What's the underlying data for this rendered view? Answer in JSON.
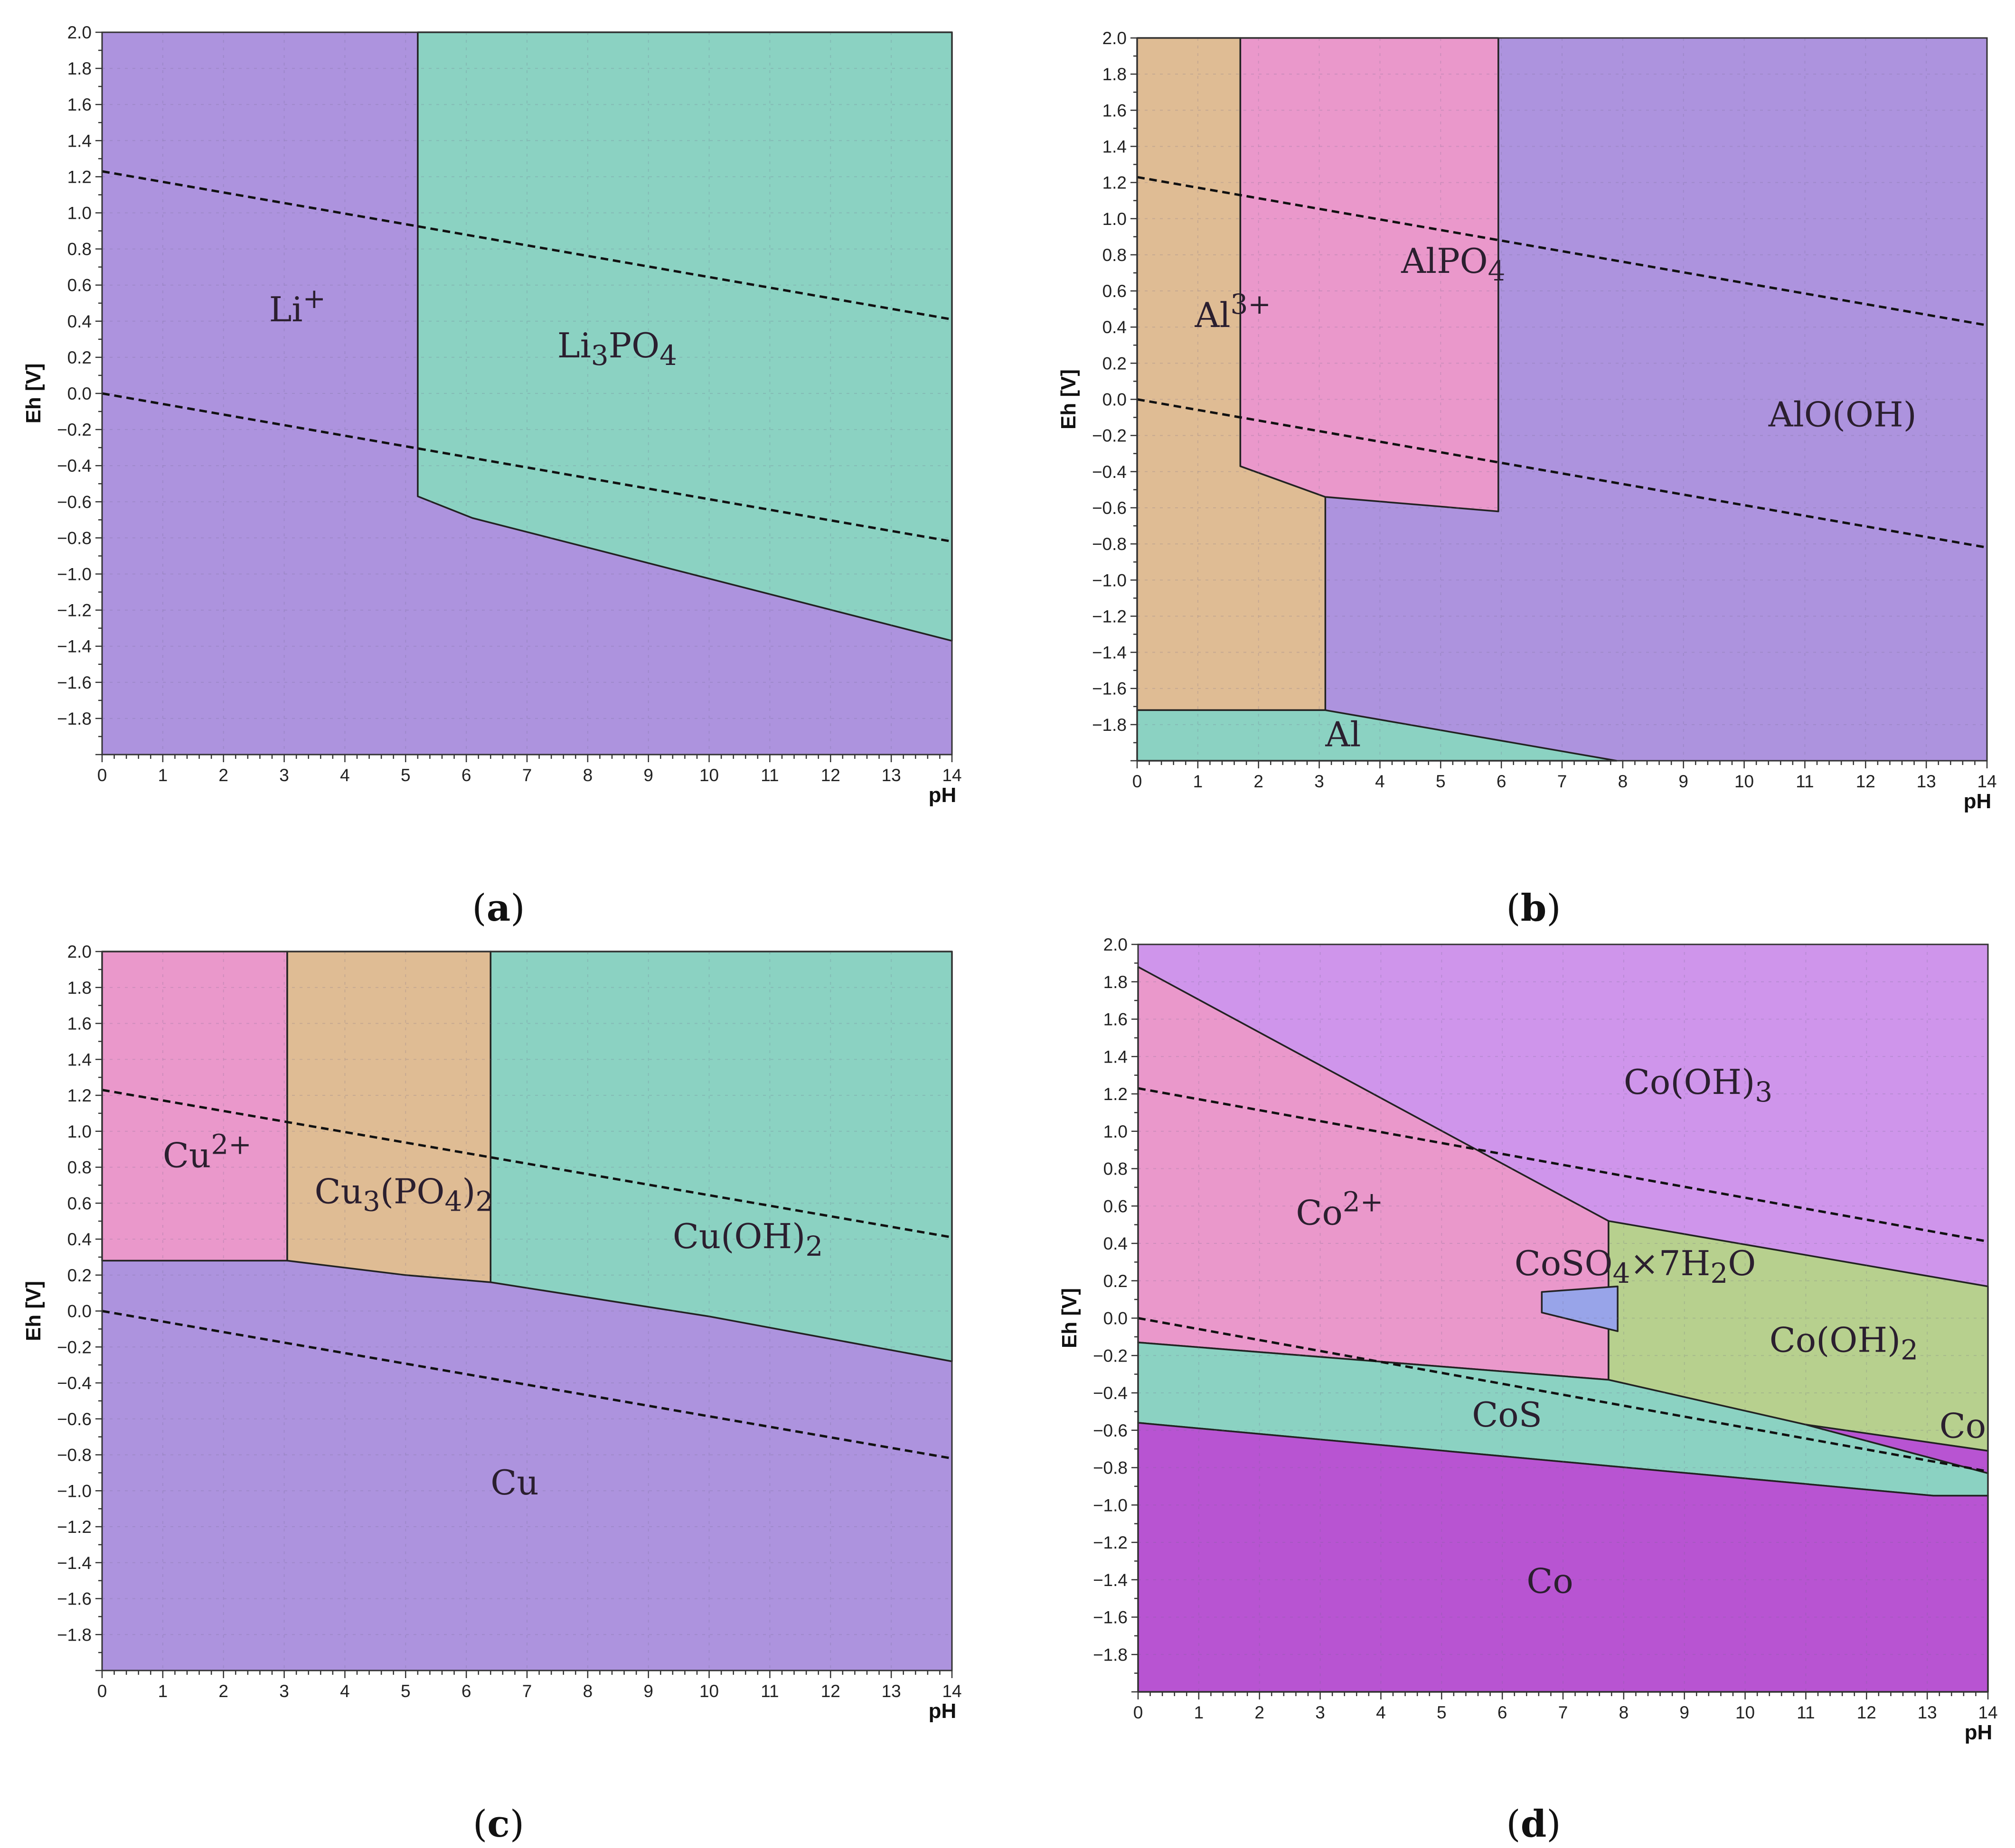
{
  "colors": {
    "purple": "#ad93de",
    "teal": "#8bd2c2",
    "pink": "#ea98cb",
    "tan": "#dfbc94",
    "lavender": "#cf95eb",
    "magenta": "#b854d2",
    "olive": "#b7d08e",
    "blue": "#98a4e9"
  },
  "chart_data": [
    {
      "id": "a",
      "type": "area",
      "caption": "(a)",
      "caption_letter": "a",
      "title": "",
      "xlabel": "pH",
      "ylabel": "Eh [V]",
      "xlim": [
        0,
        14
      ],
      "ylim": [
        -2.0,
        2.0
      ],
      "x_ticks": [
        "0",
        "1",
        "2",
        "3",
        "4",
        "5",
        "6",
        "7",
        "8",
        "9",
        "10",
        "11",
        "12",
        "13",
        "14"
      ],
      "y_ticks": [
        "2.0",
        "1.8",
        "1.6",
        "1.4",
        "1.2",
        "1.0",
        "0.8",
        "0.6",
        "0.4",
        "0.2",
        "0.0",
        "−0.2",
        "−0.4",
        "−0.6",
        "−0.8",
        "−1.0",
        "−1.2",
        "−1.4",
        "−1.6",
        "−1.8"
      ],
      "regions": [
        {
          "name": "Li+",
          "color": "purple",
          "points": [
            [
              0,
              2
            ],
            [
              14,
              2
            ],
            [
              14,
              -2
            ],
            [
              0,
              -2
            ]
          ]
        },
        {
          "name": "Li3PO4",
          "color": "teal",
          "points": [
            [
              5.2,
              2
            ],
            [
              14,
              2
            ],
            [
              14,
              -1.37
            ],
            [
              6.1,
              -0.69
            ],
            [
              5.2,
              -0.57
            ]
          ]
        }
      ],
      "water_lines": [
        [
          [
            0,
            1.23
          ],
          [
            14,
            0.41
          ]
        ],
        [
          [
            0,
            0.0
          ],
          [
            14,
            -0.82
          ]
        ]
      ],
      "labels": [
        {
          "text": "Li",
          "sup": "+",
          "x": 2.75,
          "y": 0.4
        },
        {
          "text": "Li",
          "sub": "3",
          "text2": "PO",
          "sub2": "4",
          "x": 7.5,
          "y": 0.2
        }
      ]
    },
    {
      "id": "b",
      "type": "area",
      "caption": "(b)",
      "caption_letter": "b",
      "title": "",
      "xlabel": "pH",
      "ylabel": "Eh [V]",
      "xlim": [
        0,
        14
      ],
      "ylim": [
        -2.0,
        2.0
      ],
      "x_ticks": [
        "0",
        "1",
        "2",
        "3",
        "4",
        "5",
        "6",
        "7",
        "8",
        "9",
        "10",
        "11",
        "12",
        "13",
        "14"
      ],
      "y_ticks": [
        "2.0",
        "1.8",
        "1.6",
        "1.4",
        "1.2",
        "1.0",
        "0.8",
        "0.6",
        "0.4",
        "0.2",
        "0.0",
        "−0.2",
        "−0.4",
        "−0.6",
        "−0.8",
        "−1.0",
        "−1.2",
        "−1.4",
        "−1.6",
        "−1.8"
      ],
      "regions": [
        {
          "name": "AlO(OH)",
          "color": "purple",
          "points": [
            [
              0,
              2
            ],
            [
              14,
              2
            ],
            [
              14,
              -2
            ],
            [
              0,
              -2
            ]
          ]
        },
        {
          "name": "Al3+",
          "color": "tan",
          "points": [
            [
              0,
              2
            ],
            [
              1.7,
              2
            ],
            [
              1.7,
              -0.37
            ],
            [
              3.1,
              -0.54
            ],
            [
              3.1,
              -1.72
            ],
            [
              0,
              -1.72
            ]
          ]
        },
        {
          "name": "AlPO4",
          "color": "pink",
          "points": [
            [
              1.7,
              2
            ],
            [
              5.95,
              2
            ],
            [
              5.95,
              -0.62
            ],
            [
              3.1,
              -0.54
            ],
            [
              1.7,
              -0.37
            ]
          ]
        },
        {
          "name": "Al",
          "color": "teal",
          "points": [
            [
              0,
              -1.72
            ],
            [
              3.1,
              -1.72
            ],
            [
              7.9,
              -2.0
            ],
            [
              0,
              -2.0
            ]
          ]
        }
      ],
      "water_lines": [
        [
          [
            0,
            1.23
          ],
          [
            14,
            0.41
          ]
        ],
        [
          [
            0,
            0.0
          ],
          [
            14,
            -0.82
          ]
        ]
      ],
      "labels": [
        {
          "text": "AlPO",
          "sub": "4",
          "x": 4.35,
          "y": 0.7
        },
        {
          "text": "Al",
          "sup": "3+",
          "x": 0.95,
          "y": 0.4
        },
        {
          "text": "AlO(OH)",
          "x": 10.4,
          "y": -0.15
        },
        {
          "text": "Al",
          "x": 3.1,
          "y": -1.92
        }
      ]
    },
    {
      "id": "c",
      "type": "area",
      "caption": "(c)",
      "caption_letter": "c",
      "title": "",
      "xlabel": "pH",
      "ylabel": "Eh [V]",
      "xlim": [
        0,
        14
      ],
      "ylim": [
        -2.0,
        2.0
      ],
      "x_ticks": [
        "0",
        "1",
        "2",
        "3",
        "4",
        "5",
        "6",
        "7",
        "8",
        "9",
        "10",
        "11",
        "12",
        "13",
        "14"
      ],
      "y_ticks": [
        "2.0",
        "1.8",
        "1.6",
        "1.4",
        "1.2",
        "1.0",
        "0.8",
        "0.6",
        "0.4",
        "0.2",
        "0.0",
        "−0.2",
        "−0.4",
        "−0.6",
        "−0.8",
        "−1.0",
        "−1.2",
        "−1.4",
        "−1.6",
        "−1.8"
      ],
      "regions": [
        {
          "name": "Cu",
          "color": "purple",
          "points": [
            [
              0,
              2
            ],
            [
              14,
              2
            ],
            [
              14,
              -2
            ],
            [
              0,
              -2
            ]
          ]
        },
        {
          "name": "Cu2+",
          "color": "pink",
          "points": [
            [
              0,
              2
            ],
            [
              3.05,
              2
            ],
            [
              3.05,
              0.28
            ],
            [
              0,
              0.28
            ]
          ]
        },
        {
          "name": "Cu3(PO4)2",
          "color": "tan",
          "points": [
            [
              3.05,
              2
            ],
            [
              6.4,
              2
            ],
            [
              6.4,
              0.16
            ],
            [
              5.0,
              0.2
            ],
            [
              3.05,
              0.28
            ]
          ]
        },
        {
          "name": "Cu(OH)2",
          "color": "teal",
          "points": [
            [
              6.4,
              2
            ],
            [
              14,
              2
            ],
            [
              14,
              -0.28
            ],
            [
              10,
              -0.03
            ],
            [
              6.4,
              0.16
            ]
          ]
        }
      ],
      "water_lines": [
        [
          [
            0,
            1.23
          ],
          [
            14,
            0.41
          ]
        ],
        [
          [
            0,
            0.0
          ],
          [
            14,
            -0.82
          ]
        ]
      ],
      "labels": [
        {
          "text": "Cu",
          "sup": "2+",
          "x": 1.0,
          "y": 0.8
        },
        {
          "text": "Cu",
          "sub": "3",
          "text2": "(PO",
          "sub2": "4",
          "text3": ")",
          "sub3": "2",
          "x": 3.5,
          "y": 0.6
        },
        {
          "text": "Cu(OH)",
          "sub": "2",
          "x": 9.4,
          "y": 0.35
        },
        {
          "text": "Cu",
          "x": 6.4,
          "y": -1.02
        }
      ]
    },
    {
      "id": "d",
      "type": "area",
      "caption": "(d)",
      "caption_letter": "d",
      "title": "",
      "xlabel": "pH",
      "ylabel": "Eh [V]",
      "xlim": [
        0,
        14
      ],
      "ylim": [
        -2.0,
        2.0
      ],
      "x_ticks": [
        "0",
        "1",
        "2",
        "3",
        "4",
        "5",
        "6",
        "7",
        "8",
        "9",
        "10",
        "11",
        "12",
        "13",
        "14"
      ],
      "y_ticks": [
        "2.0",
        "1.8",
        "1.6",
        "1.4",
        "1.2",
        "1.0",
        "0.8",
        "0.6",
        "0.4",
        "0.2",
        "0.0",
        "−0.2",
        "−0.4",
        "−0.6",
        "−0.8",
        "−1.0",
        "−1.2",
        "−1.4",
        "−1.6",
        "−1.8"
      ],
      "regions": [
        {
          "name": "Co(OH)3",
          "color": "lavender",
          "points": [
            [
              0,
              2
            ],
            [
              14,
              2
            ],
            [
              14,
              -2
            ],
            [
              0,
              -2
            ]
          ]
        },
        {
          "name": "Co2+",
          "color": "pink",
          "points": [
            [
              0,
              1.88
            ],
            [
              7.75,
              0.52
            ],
            [
              7.75,
              -0.33
            ],
            [
              0,
              -0.13
            ]
          ]
        },
        {
          "name": "Co(OH)2",
          "color": "olive",
          "points": [
            [
              7.75,
              0.52
            ],
            [
              14,
              0.17
            ],
            [
              14,
              -0.71
            ],
            [
              11,
              -0.57
            ],
            [
              7.75,
              -0.33
            ]
          ]
        },
        {
          "name": "CoS",
          "color": "teal",
          "points": [
            [
              0,
              -0.13
            ],
            [
              7.75,
              -0.33
            ],
            [
              11,
              -0.57
            ],
            [
              14,
              -0.83
            ],
            [
              14,
              -0.95
            ],
            [
              13.1,
              -0.95
            ],
            [
              0,
              -0.56
            ]
          ]
        },
        {
          "name": "Co (minor)",
          "color": "magenta",
          "points": [
            [
              11,
              -0.57
            ],
            [
              14,
              -0.71
            ],
            [
              14,
              -0.83
            ]
          ]
        },
        {
          "name": "Co",
          "color": "magenta",
          "points": [
            [
              0,
              -0.56
            ],
            [
              13.1,
              -0.95
            ],
            [
              14,
              -0.95
            ],
            [
              14,
              -2
            ],
            [
              0,
              -2
            ]
          ]
        },
        {
          "name": "CoSO4x7H2O",
          "color": "blue",
          "points": [
            [
              6.65,
              0.14
            ],
            [
              7.9,
              0.17
            ],
            [
              7.9,
              -0.07
            ],
            [
              6.65,
              0.03
            ]
          ]
        }
      ],
      "water_lines": [
        [
          [
            0,
            1.23
          ],
          [
            14,
            0.41
          ]
        ],
        [
          [
            0,
            0.0
          ],
          [
            14,
            -0.82
          ]
        ]
      ],
      "labels": [
        {
          "text": "Co(OH)",
          "sub": "3",
          "x": 8.0,
          "y": 1.2
        },
        {
          "text": "Co",
          "sup": "2+",
          "x": 2.6,
          "y": 0.5
        },
        {
          "text": "CoSO",
          "sub": "4",
          "text2": "×7H",
          "sub2": "2",
          "text3": "O",
          "x": 6.2,
          "y": 0.23
        },
        {
          "text": "Co(OH)",
          "sub": "2",
          "x": 10.4,
          "y": -0.18
        },
        {
          "text": "Co",
          "x": 13.2,
          "y": -0.64
        },
        {
          "text": "CoS",
          "x": 5.5,
          "y": -0.58
        },
        {
          "text": "Co",
          "x": 6.4,
          "y": -1.47
        }
      ]
    }
  ]
}
